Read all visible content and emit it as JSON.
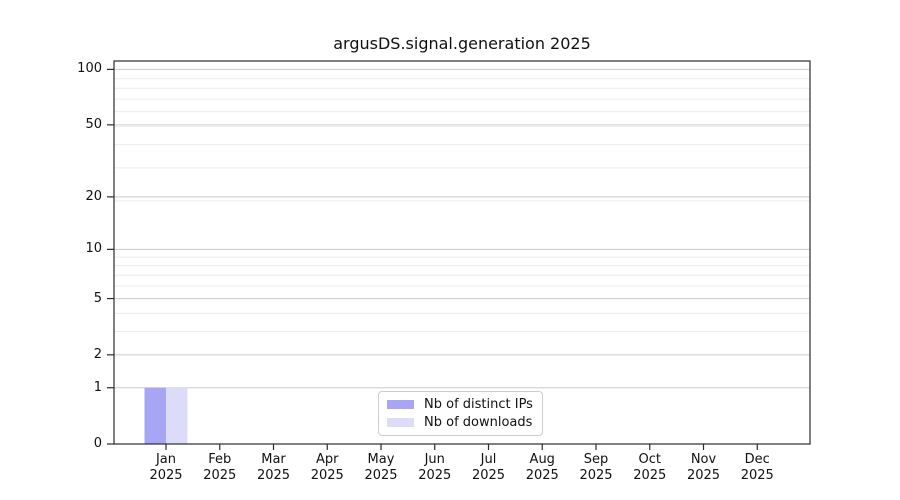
{
  "chart_data": {
    "type": "bar",
    "title": "argusDS.signal.generation 2025",
    "categories": [
      "Jan 2025",
      "Feb 2025",
      "Mar 2025",
      "Apr 2025",
      "May 2025",
      "Jun 2025",
      "Jul 2025",
      "Aug 2025",
      "Sep 2025",
      "Oct 2025",
      "Nov 2025",
      "Dec 2025"
    ],
    "series": [
      {
        "name": "Nb of distinct IPs",
        "color": "#a6a6f5",
        "values": [
          1,
          0,
          0,
          0,
          0,
          0,
          0,
          0,
          0,
          0,
          0,
          0
        ]
      },
      {
        "name": "Nb of downloads",
        "color": "#dcdcf9",
        "values": [
          1,
          0,
          0,
          0,
          0,
          0,
          0,
          0,
          0,
          0,
          0,
          0
        ]
      }
    ],
    "xlabel": "",
    "ylabel": "",
    "yscale": "log1p",
    "ylim": [
      0,
      111
    ],
    "yticks": [
      0,
      1,
      2,
      5,
      10,
      20,
      50,
      100
    ],
    "yticks_minor": [
      3,
      4,
      6,
      7,
      8,
      9,
      19,
      29,
      39,
      49,
      59,
      69,
      79,
      89
    ],
    "grid": "horizontal",
    "legend_position": "bottom-center-inside",
    "colors": {
      "grid_major": "#cccccc",
      "grid_minor": "#ececec",
      "spine": "#2b2b2b",
      "text": "#111111",
      "legend_border": "#cccccc",
      "legend_background": "#ffffff",
      "figure_background": "#ffffff"
    }
  }
}
